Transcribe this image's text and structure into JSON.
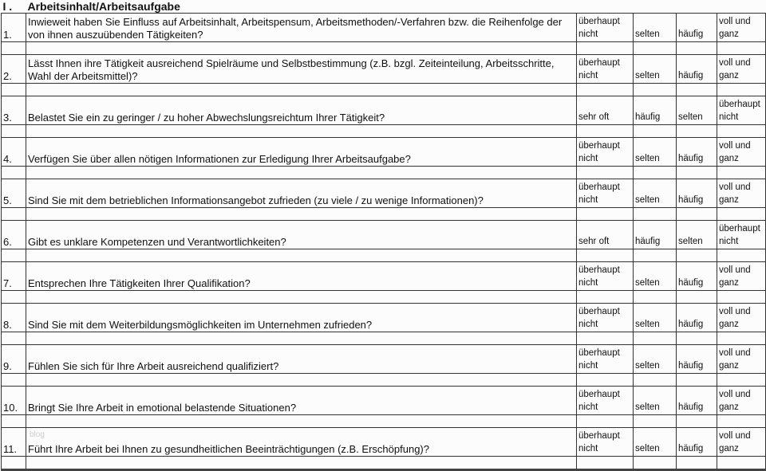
{
  "section": {
    "number": "I .",
    "title": "Arbeitsinhalt/Arbeitsaufgabe"
  },
  "watermark": "blog",
  "questions": [
    {
      "num": "1.",
      "text": "Inwieweit haben Sie Einfluss auf Arbeitsinhalt, Arbeitspensum, Arbeitsmethoden/-Verfahren bzw. die Reihenfolge der von ihnen auszuübenden  Tätigkeiten?",
      "options": [
        "überhaupt nicht",
        "selten",
        "häufig",
        "voll und ganz"
      ]
    },
    {
      "num": "2.",
      "text": "Lässt Ihnen ihre Tätigkeit ausreichend Spielräume und Selbstbestimmung (z.B. bzgl. Zeiteinteilung, Arbeitsschritte, Wahl der Arbeitsmittel)?",
      "options": [
        "überhaupt nicht",
        "selten",
        "häufig",
        "voll und ganz"
      ]
    },
    {
      "num": "3.",
      "text": "Belastet Sie ein zu geringer / zu hoher Abwechslungsreichtum Ihrer Tätigkeit?",
      "options": [
        "sehr oft",
        "häufig",
        "selten",
        "überhaupt nicht"
      ]
    },
    {
      "num": "4.",
      "text": "Verfügen Sie über allen nötigen Informationen zur Erledigung Ihrer Arbeitsaufgabe?",
      "options": [
        "überhaupt nicht",
        "selten",
        "häufig",
        "voll und ganz"
      ]
    },
    {
      "num": "5.",
      "text": "Sind Sie mit dem betrieblichen Informationsangebot zufrieden (zu viele / zu wenige Informationen)?",
      "options": [
        "überhaupt nicht",
        "selten",
        "häufig",
        "voll und ganz"
      ]
    },
    {
      "num": "6.",
      "text": "Gibt es unklare Kompetenzen und Verantwortlichkeiten?",
      "options": [
        "sehr oft",
        "häufig",
        "selten",
        "überhaupt nicht"
      ]
    },
    {
      "num": "7.",
      "text": "Entsprechen Ihre Tätigkeiten Ihrer Qualifikation?",
      "options": [
        "überhaupt nicht",
        "selten",
        "häufig",
        "voll und ganz"
      ]
    },
    {
      "num": "8.",
      "text": "Sind Sie mit dem Weiterbildungsmöglichkeiten im Unternehmen zufrieden?",
      "options": [
        "überhaupt nicht",
        "selten",
        "häufig",
        "voll und ganz"
      ]
    },
    {
      "num": "9.",
      "text": "Fühlen Sie sich für Ihre Arbeit ausreichend qualifiziert?",
      "options": [
        "überhaupt nicht",
        "selten",
        "häufig",
        "voll und ganz"
      ]
    },
    {
      "num": "10.",
      "text": "Bringt Sie Ihre Arbeit in emotional belastende Situationen?",
      "options": [
        "überhaupt nicht",
        "selten",
        "häufig",
        "voll und ganz"
      ]
    },
    {
      "num": "11.",
      "text": "Führt Ihre Arbeit bei Ihnen zu gesundheitlichen Beeinträchtigungen (z.B. Erschöpfung)?",
      "options": [
        "überhaupt nicht",
        "selten",
        "häufig",
        "voll und ganz"
      ]
    }
  ]
}
